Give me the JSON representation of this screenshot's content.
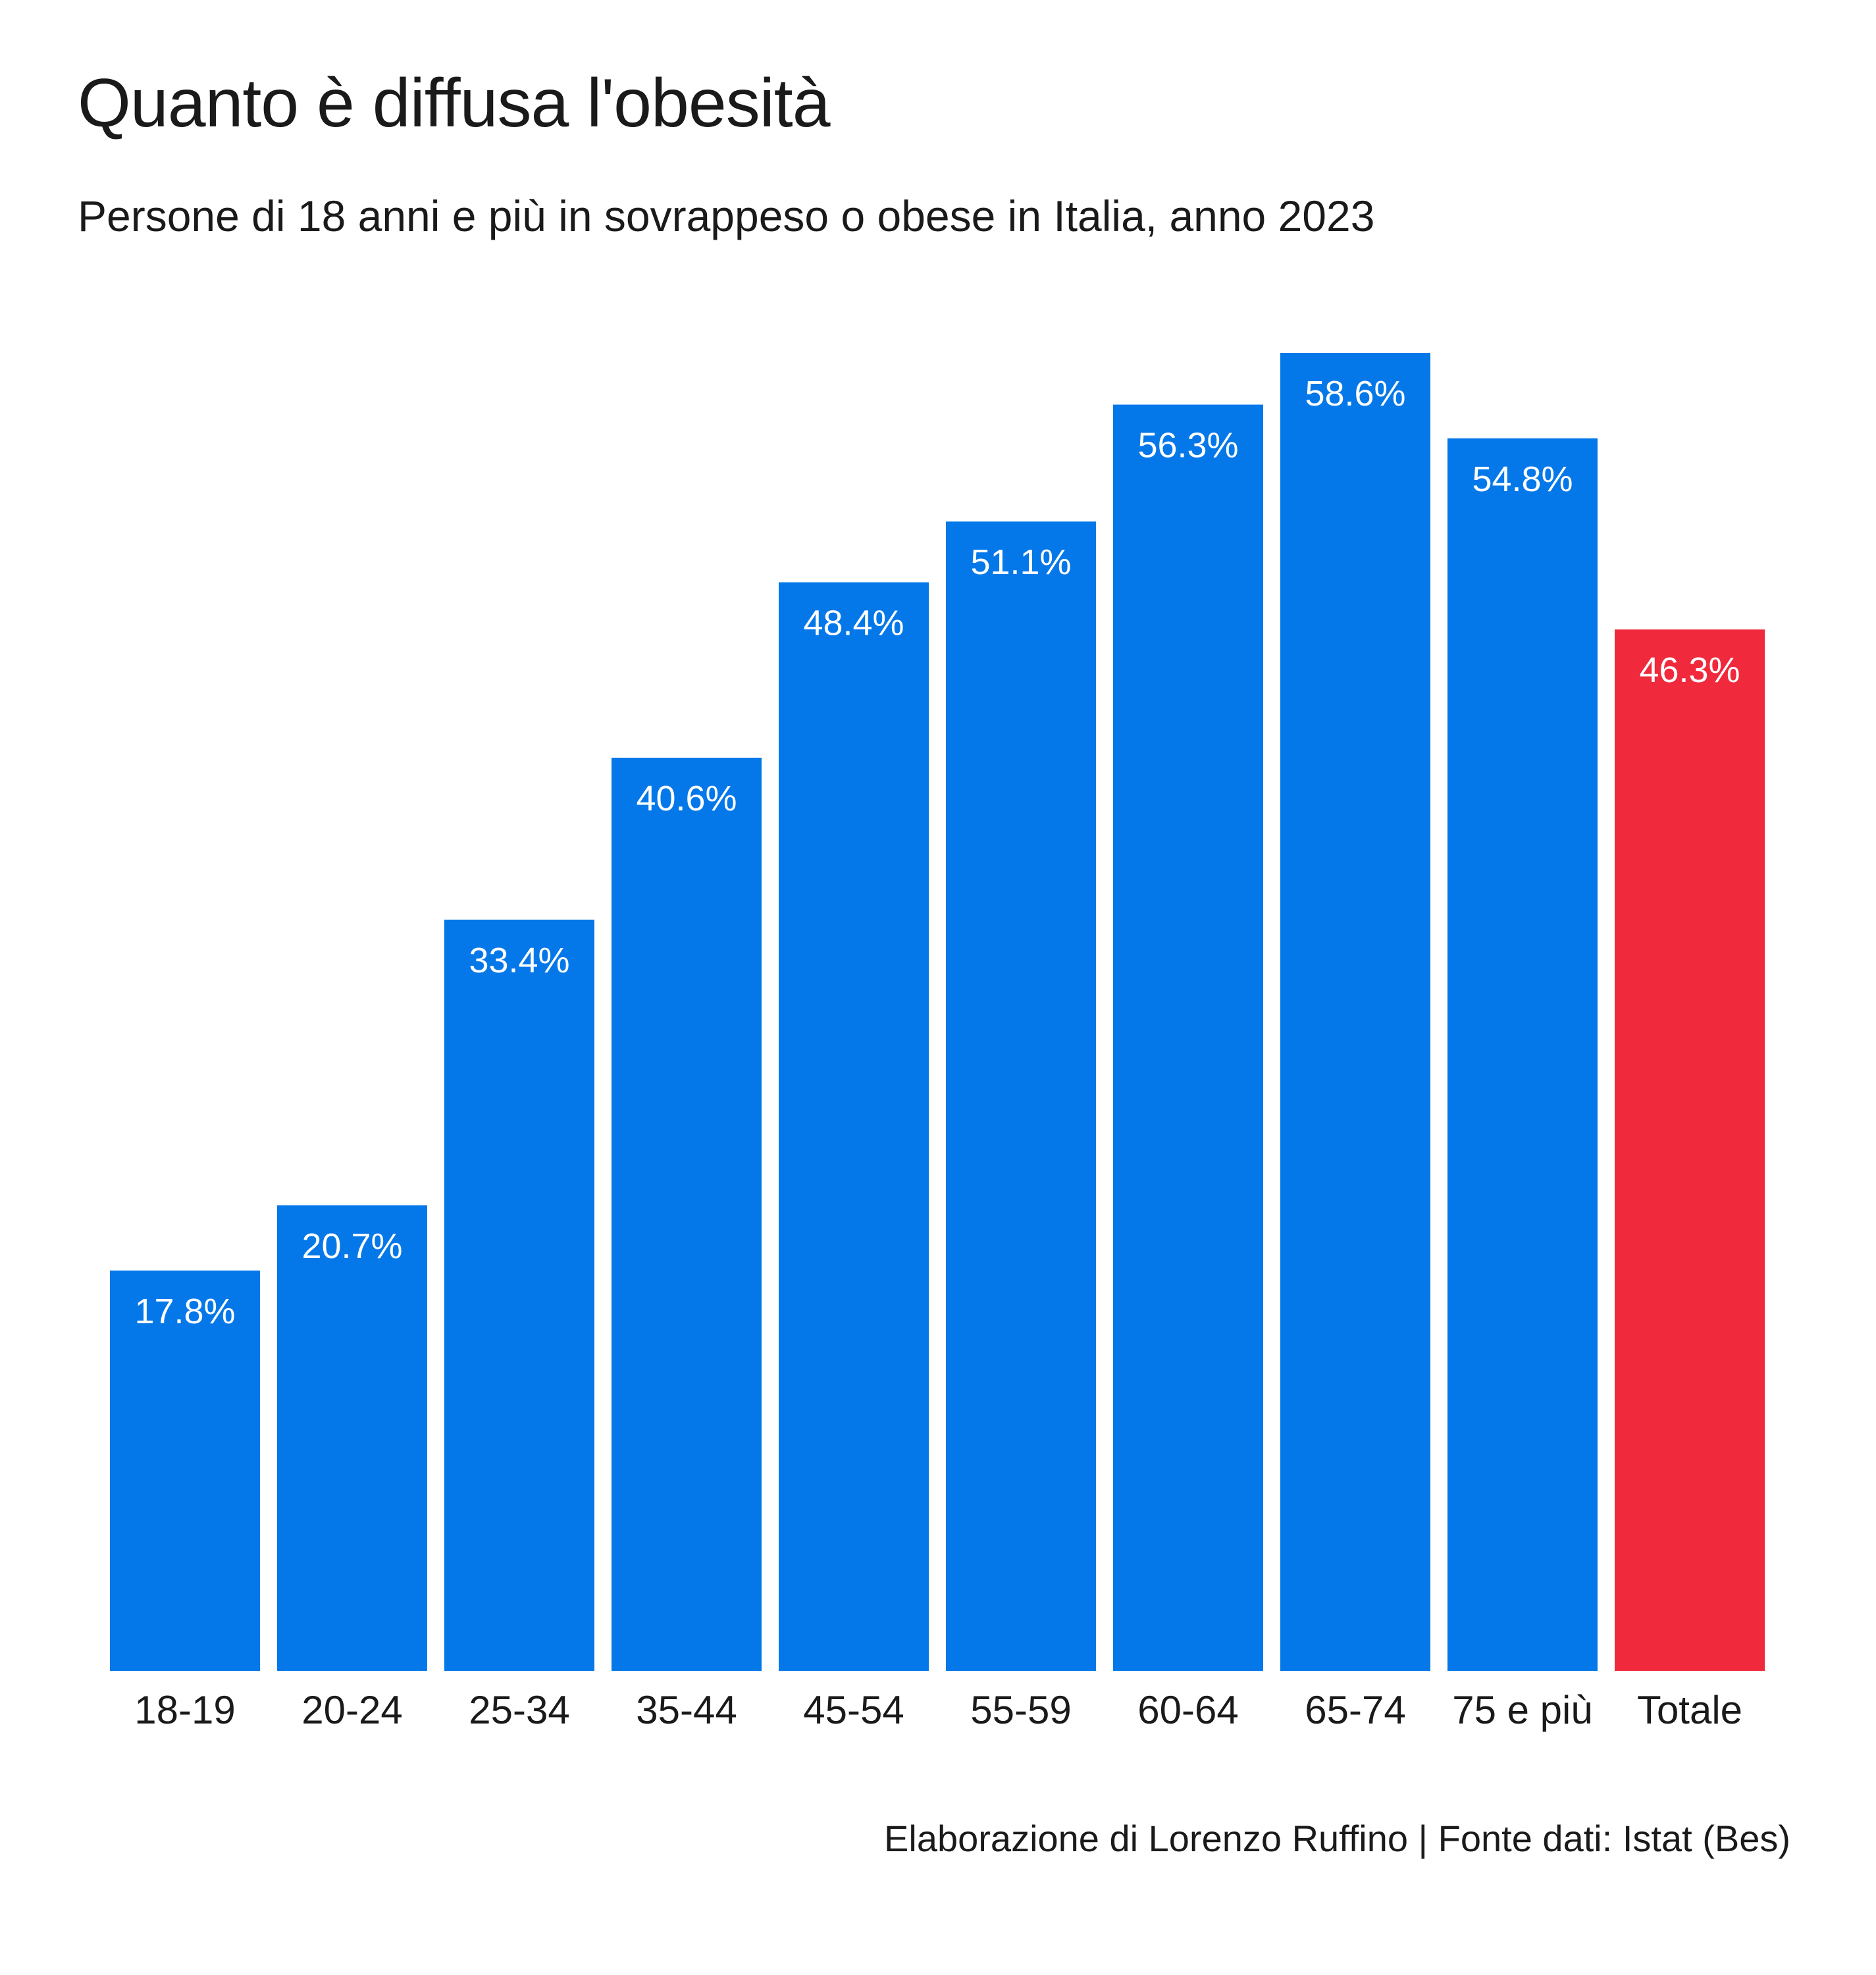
{
  "chart_data": {
    "type": "bar",
    "title": "Quanto è diffusa l'obesità",
    "subtitle": "Persone di 18 anni e più in sovrappeso o obese in Italia, anno 2023",
    "caption": "Elaborazione di Lorenzo Ruffino | Fonte dati: Istat (Bes)",
    "categories": [
      "18-19",
      "20-24",
      "25-34",
      "35-44",
      "45-54",
      "55-59",
      "60-64",
      "65-74",
      "75 e più",
      "Totale"
    ],
    "values": [
      17.8,
      20.7,
      33.4,
      40.6,
      48.4,
      51.1,
      56.3,
      58.6,
      54.8,
      46.3
    ],
    "value_labels": [
      "17.8%",
      "20.7%",
      "33.4%",
      "40.6%",
      "48.4%",
      "51.1%",
      "56.3%",
      "58.6%",
      "54.8%",
      "46.3%"
    ],
    "highlight_category": "Totale",
    "ylim": [
      0,
      58.6
    ],
    "grid": false,
    "legend": "none",
    "colors": {
      "bar": "#0578e9",
      "highlight": "#f0293c",
      "label": "#ffffff"
    }
  }
}
